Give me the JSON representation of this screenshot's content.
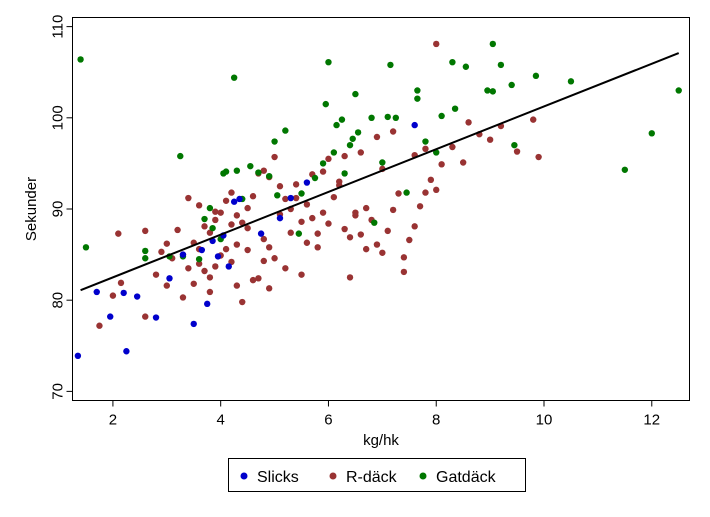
{
  "chart_data": {
    "type": "scatter",
    "xlabel": "kg/hk",
    "ylabel": "Sekunder",
    "xlim": [
      1.25,
      12.7
    ],
    "ylim": [
      69,
      111
    ],
    "x_ticks": [
      2,
      4,
      6,
      8,
      10,
      12
    ],
    "y_ticks": [
      70,
      80,
      90,
      100,
      110
    ],
    "x_tick_labels": [
      "2",
      "4",
      "6",
      "8",
      "10",
      "12"
    ],
    "y_tick_labels": [
      "70",
      "80",
      "90",
      "100",
      "110"
    ],
    "grid": false,
    "legend_position": "bottom",
    "trend_line": {
      "x": [
        1.4,
        12.5
      ],
      "y": [
        81.1,
        107.1
      ],
      "color": "#000000"
    },
    "series": [
      {
        "name": "Slicks",
        "color": "#0000cc",
        "points": [
          [
            1.35,
            73.9
          ],
          [
            1.7,
            80.9
          ],
          [
            1.95,
            78.2
          ],
          [
            2.2,
            80.8
          ],
          [
            2.25,
            74.4
          ],
          [
            2.45,
            80.4
          ],
          [
            2.8,
            78.1
          ],
          [
            3.05,
            82.4
          ],
          [
            3.5,
            77.4
          ],
          [
            3.65,
            85.5
          ],
          [
            3.75,
            79.6
          ],
          [
            3.85,
            86.5
          ],
          [
            4.05,
            87.1
          ],
          [
            4.15,
            83.7
          ],
          [
            4.25,
            90.8
          ],
          [
            4.35,
            91.1
          ],
          [
            5.3,
            91.2
          ],
          [
            5.6,
            92.9
          ],
          [
            7.6,
            99.2
          ],
          [
            3.95,
            84.8
          ],
          [
            5.1,
            89.0
          ],
          [
            4.75,
            87.3
          ],
          [
            3.3,
            85.0
          ]
        ]
      },
      {
        "name": "R-däck",
        "color": "#993333",
        "points": [
          [
            1.75,
            77.2
          ],
          [
            2.0,
            80.5
          ],
          [
            2.15,
            81.9
          ],
          [
            2.6,
            78.2
          ],
          [
            2.8,
            82.8
          ],
          [
            3.0,
            81.6
          ],
          [
            3.1,
            84.6
          ],
          [
            3.3,
            85.0
          ],
          [
            3.4,
            83.5
          ],
          [
            3.5,
            81.8
          ],
          [
            3.6,
            84.0
          ],
          [
            3.7,
            83.2
          ],
          [
            3.8,
            82.5
          ],
          [
            3.9,
            83.7
          ],
          [
            4.0,
            84.9
          ],
          [
            4.1,
            85.6
          ],
          [
            4.2,
            84.2
          ],
          [
            4.3,
            86.1
          ],
          [
            4.4,
            79.8
          ],
          [
            4.5,
            85.5
          ],
          [
            4.6,
            82.2
          ],
          [
            4.7,
            82.4
          ],
          [
            4.8,
            84.3
          ],
          [
            4.9,
            85.8
          ],
          [
            5.0,
            84.6
          ],
          [
            3.5,
            86.3
          ],
          [
            3.6,
            85.6
          ],
          [
            3.7,
            88.1
          ],
          [
            3.8,
            87.4
          ],
          [
            3.9,
            88.8
          ],
          [
            4.0,
            89.6
          ],
          [
            4.1,
            90.9
          ],
          [
            4.2,
            91.8
          ],
          [
            4.3,
            89.3
          ],
          [
            4.4,
            88.5
          ],
          [
            4.5,
            90.1
          ],
          [
            4.6,
            91.4
          ],
          [
            4.7,
            93.9
          ],
          [
            4.8,
            94.2
          ],
          [
            4.9,
            93.5
          ],
          [
            5.0,
            95.7
          ],
          [
            5.1,
            92.5
          ],
          [
            5.2,
            91.1
          ],
          [
            5.3,
            90.0
          ],
          [
            5.4,
            91.2
          ],
          [
            5.5,
            88.6
          ],
          [
            5.6,
            90.5
          ],
          [
            5.7,
            89.0
          ],
          [
            5.8,
            87.3
          ],
          [
            5.9,
            89.6
          ],
          [
            6.0,
            88.4
          ],
          [
            6.1,
            91.3
          ],
          [
            6.2,
            92.6
          ],
          [
            6.3,
            87.8
          ],
          [
            6.4,
            86.9
          ],
          [
            6.5,
            89.3
          ],
          [
            6.6,
            87.2
          ],
          [
            6.7,
            90.1
          ],
          [
            6.8,
            88.8
          ],
          [
            6.9,
            86.1
          ],
          [
            7.0,
            85.2
          ],
          [
            7.1,
            87.6
          ],
          [
            7.2,
            89.9
          ],
          [
            7.3,
            91.7
          ],
          [
            7.4,
            84.7
          ],
          [
            7.5,
            86.6
          ],
          [
            7.6,
            88.1
          ],
          [
            7.7,
            90.3
          ],
          [
            7.8,
            91.8
          ],
          [
            7.9,
            93.2
          ],
          [
            8.0,
            92.1
          ],
          [
            8.1,
            94.9
          ],
          [
            8.3,
            96.8
          ],
          [
            8.5,
            95.1
          ],
          [
            8.8,
            98.2
          ],
          [
            9.0,
            97.6
          ],
          [
            9.2,
            99.1
          ],
          [
            9.5,
            96.3
          ],
          [
            9.8,
            99.8
          ],
          [
            9.9,
            95.7
          ],
          [
            8.0,
            108.1
          ],
          [
            8.6,
            99.5
          ],
          [
            7.2,
            98.5
          ],
          [
            6.9,
            97.9
          ],
          [
            6.6,
            96.2
          ],
          [
            6.3,
            95.8
          ],
          [
            6.0,
            95.5
          ],
          [
            5.7,
            93.8
          ],
          [
            5.4,
            92.7
          ],
          [
            5.1,
            89.4
          ],
          [
            4.8,
            86.7
          ],
          [
            4.5,
            87.9
          ],
          [
            4.2,
            88.3
          ],
          [
            3.9,
            89.7
          ],
          [
            3.6,
            90.4
          ],
          [
            3.4,
            91.2
          ],
          [
            3.2,
            87.7
          ],
          [
            3.0,
            86.2
          ],
          [
            2.9,
            85.3
          ],
          [
            2.6,
            87.6
          ],
          [
            2.1,
            87.3
          ],
          [
            5.5,
            82.8
          ],
          [
            6.4,
            82.5
          ],
          [
            7.4,
            83.1
          ],
          [
            6.7,
            85.6
          ],
          [
            5.8,
            85.8
          ],
          [
            5.2,
            83.5
          ],
          [
            4.9,
            81.3
          ],
          [
            4.3,
            81.6
          ],
          [
            3.8,
            80.9
          ],
          [
            3.3,
            80.3
          ],
          [
            6.5,
            89.6
          ],
          [
            7.0,
            94.4
          ],
          [
            7.6,
            95.9
          ],
          [
            7.8,
            96.6
          ],
          [
            6.2,
            93.0
          ],
          [
            5.9,
            94.1
          ],
          [
            5.3,
            87.4
          ],
          [
            5.6,
            86.3
          ]
        ]
      },
      {
        "name": "Gatdäck",
        "color": "#007700",
        "points": [
          [
            1.4,
            106.4
          ],
          [
            1.5,
            85.8
          ],
          [
            2.6,
            85.4
          ],
          [
            2.6,
            84.6
          ],
          [
            3.05,
            84.8
          ],
          [
            3.25,
            95.8
          ],
          [
            3.3,
            84.8
          ],
          [
            3.6,
            84.5
          ],
          [
            3.8,
            90.1
          ],
          [
            3.85,
            87.9
          ],
          [
            4.0,
            86.7
          ],
          [
            4.05,
            93.9
          ],
          [
            4.1,
            94.1
          ],
          [
            4.25,
            104.4
          ],
          [
            4.4,
            91.1
          ],
          [
            4.55,
            94.7
          ],
          [
            4.7,
            94.0
          ],
          [
            4.9,
            93.6
          ],
          [
            5.0,
            97.4
          ],
          [
            5.2,
            98.6
          ],
          [
            5.45,
            87.3
          ],
          [
            5.5,
            91.7
          ],
          [
            5.75,
            93.4
          ],
          [
            5.9,
            95.0
          ],
          [
            5.95,
            101.5
          ],
          [
            6.0,
            106.1
          ],
          [
            6.1,
            96.2
          ],
          [
            6.15,
            99.2
          ],
          [
            6.25,
            99.8
          ],
          [
            6.4,
            97.0
          ],
          [
            6.45,
            97.7
          ],
          [
            6.5,
            102.6
          ],
          [
            6.55,
            98.4
          ],
          [
            6.8,
            100.0
          ],
          [
            6.85,
            88.5
          ],
          [
            7.0,
            95.1
          ],
          [
            7.1,
            100.1
          ],
          [
            7.15,
            105.8
          ],
          [
            7.25,
            100.0
          ],
          [
            7.45,
            91.8
          ],
          [
            7.65,
            102.1
          ],
          [
            7.65,
            103.0
          ],
          [
            7.8,
            97.4
          ],
          [
            8.0,
            96.2
          ],
          [
            8.1,
            100.2
          ],
          [
            8.3,
            106.1
          ],
          [
            8.35,
            101.0
          ],
          [
            8.55,
            105.6
          ],
          [
            8.95,
            103.0
          ],
          [
            9.05,
            108.1
          ],
          [
            9.05,
            102.9
          ],
          [
            9.2,
            105.8
          ],
          [
            9.4,
            103.6
          ],
          [
            9.45,
            97.0
          ],
          [
            9.85,
            104.6
          ],
          [
            10.5,
            104.0
          ],
          [
            11.5,
            94.3
          ],
          [
            12.0,
            98.3
          ],
          [
            12.5,
            103.0
          ],
          [
            3.7,
            88.9
          ],
          [
            4.3,
            94.2
          ],
          [
            5.05,
            91.5
          ],
          [
            6.3,
            93.9
          ]
        ]
      }
    ]
  }
}
